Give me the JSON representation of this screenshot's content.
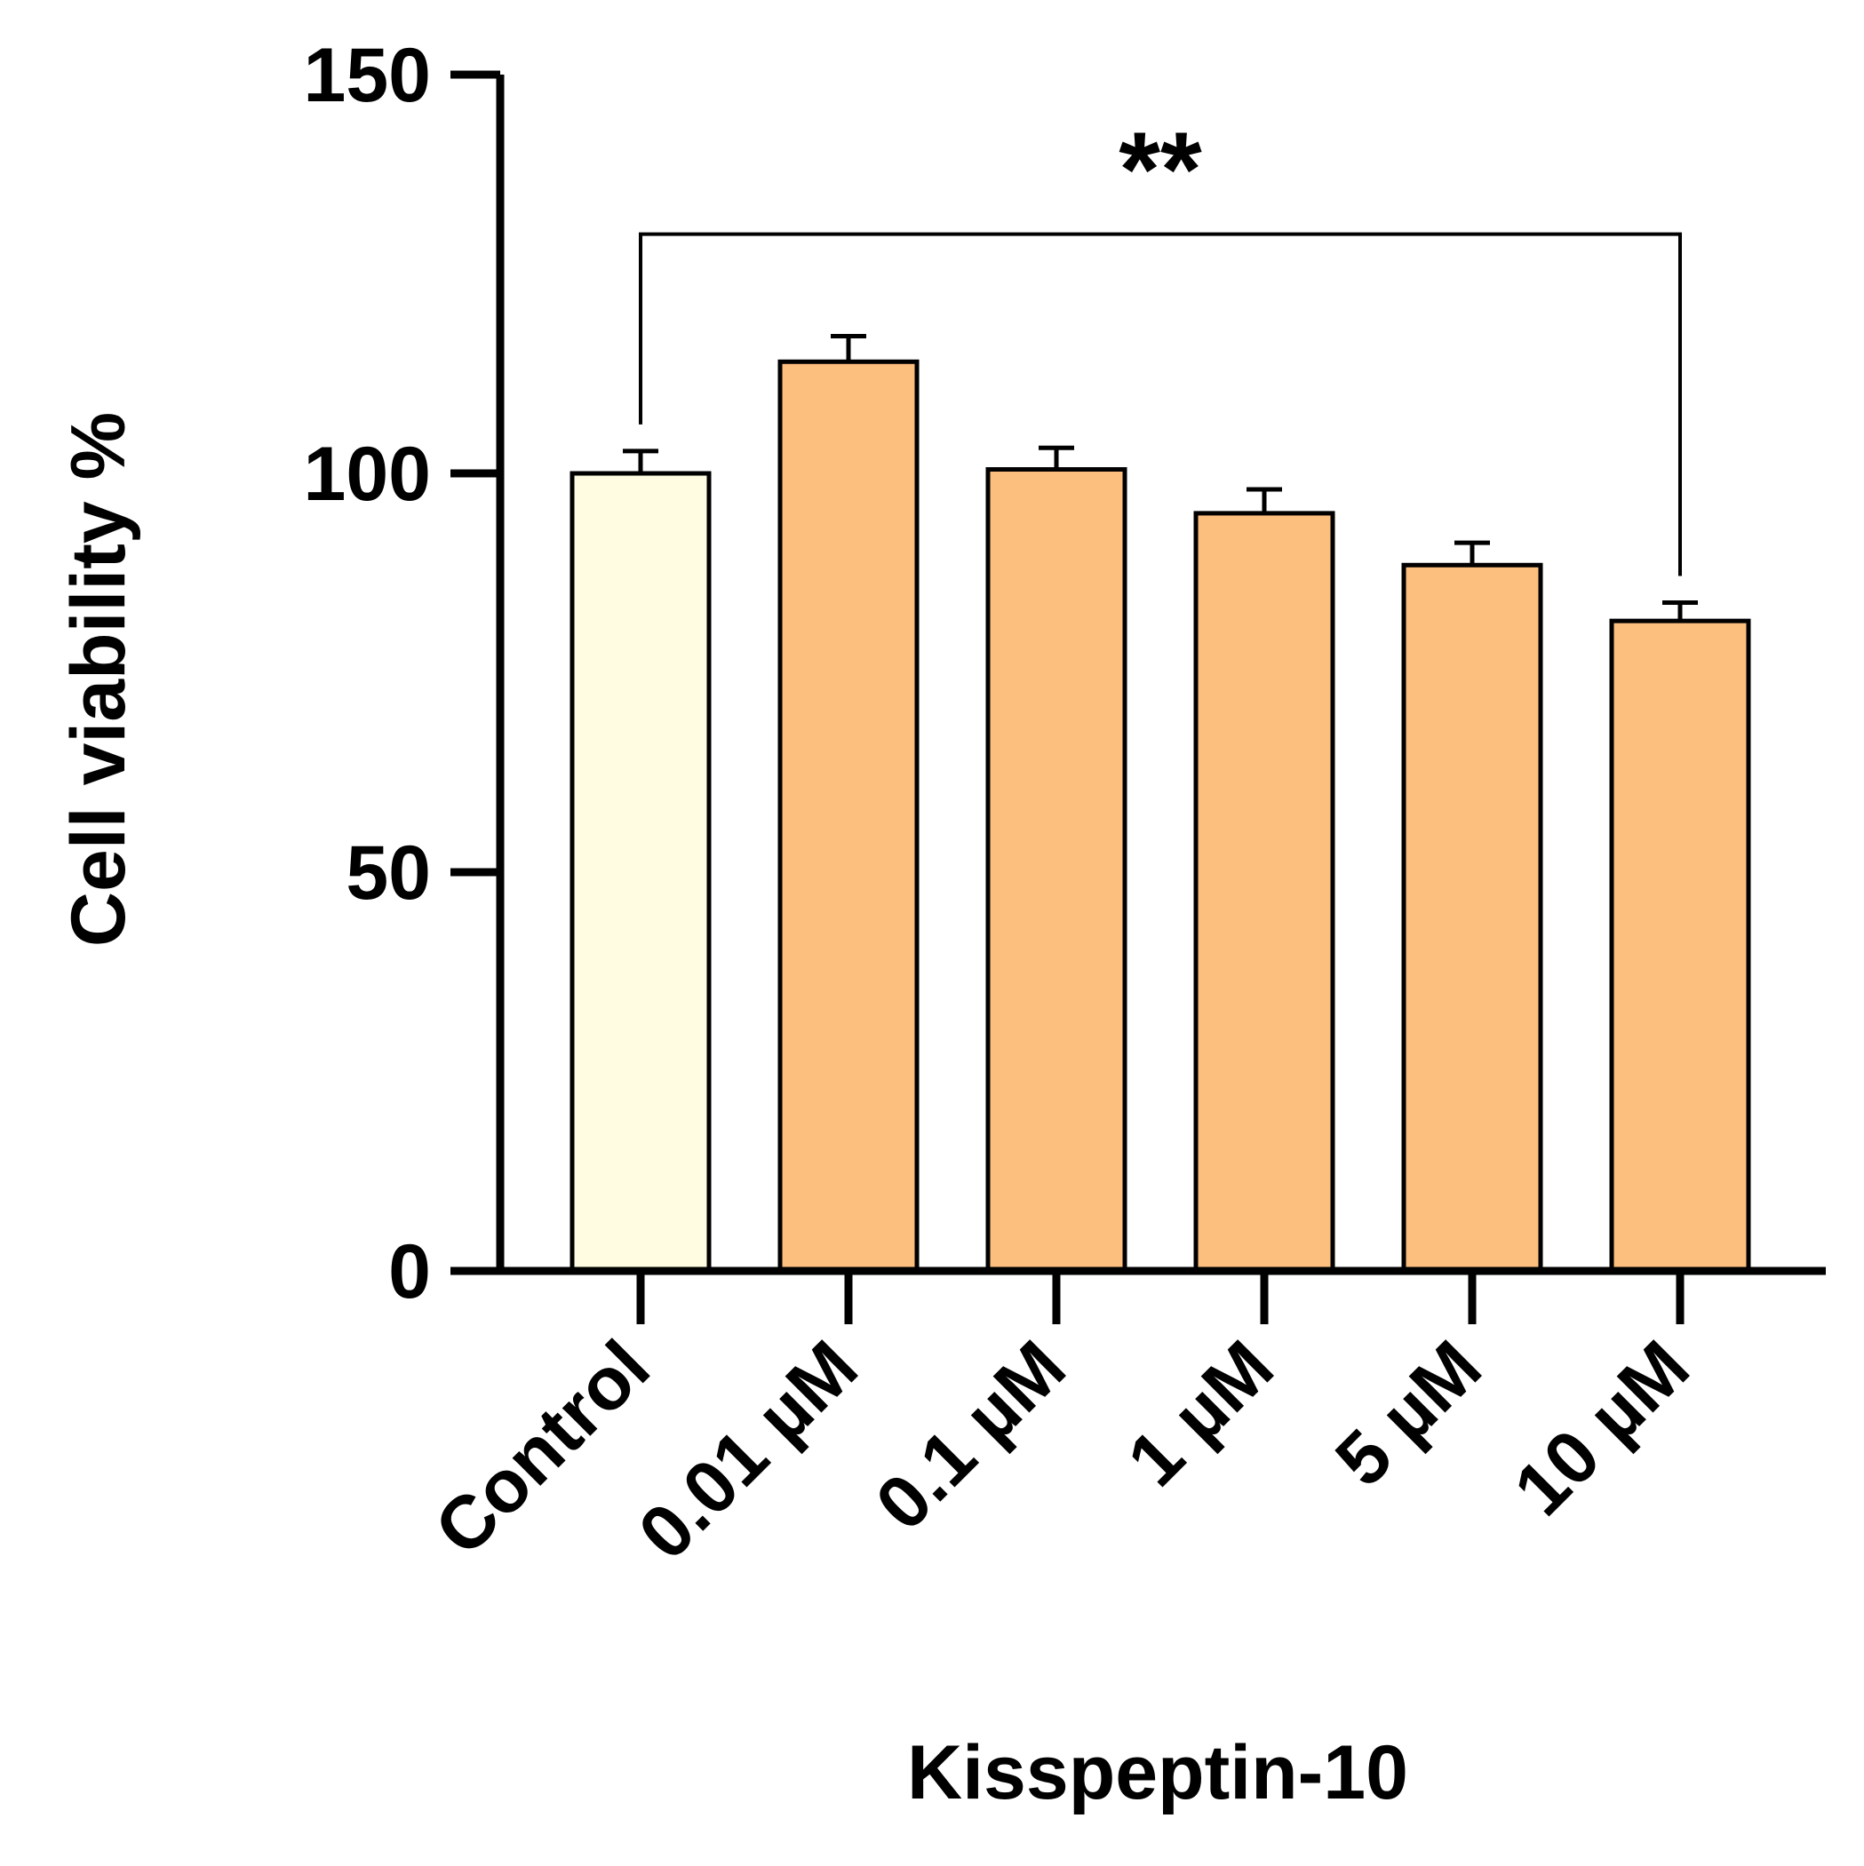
{
  "chart_data": {
    "type": "bar",
    "title": "",
    "xlabel": "Kisspeptin-10",
    "ylabel": "Cell viability %",
    "categories": [
      "Control",
      "0.01 µM",
      "0.1 µM",
      "1 µM",
      "5 µM",
      "10 µM"
    ],
    "values": [
      100,
      114,
      100.5,
      95,
      88.5,
      81.5
    ],
    "errors": [
      2.8,
      3.2,
      2.7,
      3.0,
      2.8,
      2.3
    ],
    "ylim": [
      0,
      150
    ],
    "yticks": [
      0,
      50,
      100,
      150
    ],
    "grid": false,
    "bar_colors": [
      "#FFFCE1",
      "#FDBF7E",
      "#FDBF7E",
      "#FDBF7E",
      "#FDBF7E",
      "#FDBF7E"
    ],
    "significance": {
      "from_category": "Control",
      "to_category": "10 µM",
      "label": "**",
      "bracket_y": 130
    }
  }
}
